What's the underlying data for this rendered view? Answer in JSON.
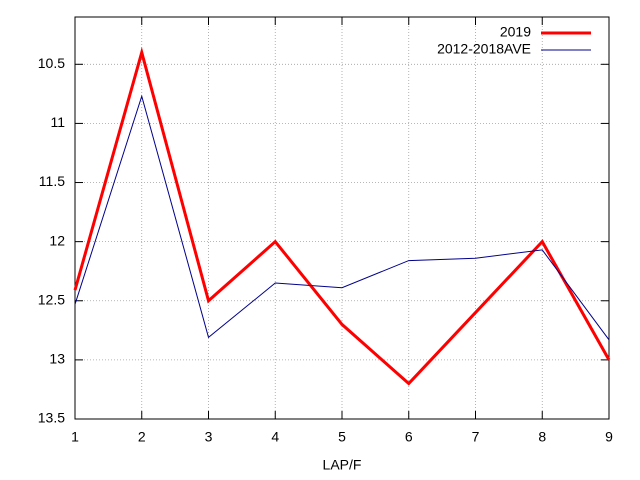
{
  "chart_data": {
    "type": "line",
    "xlabel": "LAP/F",
    "x": [
      1,
      2,
      3,
      4,
      5,
      6,
      7,
      8,
      9
    ],
    "series": [
      {
        "name": "2019",
        "color": "#ff0000",
        "values": [
          12.41,
          10.4,
          12.5,
          12.0,
          12.7,
          13.2,
          12.6,
          12.0,
          13.0
        ]
      },
      {
        "name": "2012-2018AVE",
        "color": "#00008b",
        "values": [
          12.53,
          10.77,
          12.81,
          12.35,
          12.39,
          12.16,
          12.14,
          12.07,
          12.83
        ]
      }
    ],
    "xlim": [
      1,
      9
    ],
    "xticks": [
      1,
      2,
      3,
      4,
      5,
      6,
      7,
      8,
      9
    ],
    "ylim": [
      10.1,
      13.5
    ],
    "yticks": [
      10.5,
      11,
      11.5,
      12,
      12.5,
      13,
      13.5
    ],
    "y_reversed": true,
    "grid": true,
    "legend": "top-right"
  }
}
